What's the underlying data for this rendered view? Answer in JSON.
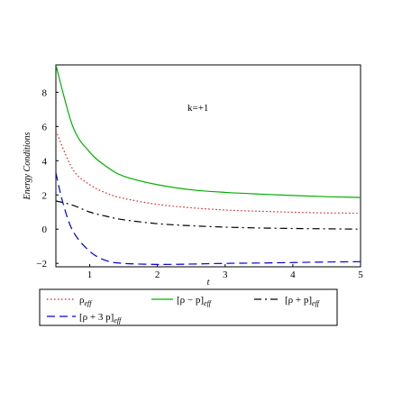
{
  "chart_data": {
    "type": "line",
    "xlabel": "t",
    "ylabel": "Energy Conditions",
    "annotation": "k=+1",
    "xlim": [
      0.5,
      5
    ],
    "ylim": [
      -2.2,
      9.6
    ],
    "xticks": [
      1,
      2,
      3,
      4,
      5
    ],
    "yticks": [
      -2,
      0,
      2,
      4,
      6,
      8
    ],
    "grid": false,
    "legend_position": "bottom",
    "series": [
      {
        "name": "ρ_eff",
        "label_main": "ρ",
        "label_sub": "eff",
        "color": "#e41a1c",
        "dash": "dotted",
        "x": [
          0.5,
          0.75,
          1.0,
          1.25,
          1.5,
          2.0,
          2.5,
          3.0,
          3.5,
          4.0,
          4.5,
          5.0
        ],
        "y": [
          5.75,
          3.5,
          2.6,
          2.1,
          1.8,
          1.45,
          1.25,
          1.12,
          1.05,
          0.99,
          0.95,
          0.93
        ]
      },
      {
        "name": "[ρ − p]_eff",
        "label_main": "[ρ − p]",
        "label_sub": "eff",
        "color": "#00b000",
        "dash": "solid",
        "x": [
          0.5,
          0.75,
          1.0,
          1.25,
          1.5,
          2.0,
          2.5,
          3.0,
          3.5,
          4.0,
          4.5,
          5.0
        ],
        "y": [
          9.6,
          6.0,
          4.5,
          3.65,
          3.1,
          2.6,
          2.3,
          2.15,
          2.05,
          1.97,
          1.9,
          1.85
        ]
      },
      {
        "name": "[ρ + p]_eff",
        "label_main": "[ρ + p]",
        "label_sub": "eff",
        "color": "#000000",
        "dash": "dashdot",
        "x": [
          0.5,
          0.75,
          1.0,
          1.25,
          1.5,
          2.0,
          2.5,
          3.0,
          3.5,
          4.0,
          4.5,
          5.0
        ],
        "y": [
          1.65,
          1.4,
          1.0,
          0.75,
          0.55,
          0.32,
          0.2,
          0.12,
          0.07,
          0.04,
          0.02,
          0.0
        ]
      },
      {
        "name": "[ρ + 3p]_eff",
        "label_main": "[ρ + 3 p]",
        "label_sub": "eff",
        "color": "#0000e0",
        "dash": "dashed",
        "x": [
          0.5,
          0.6,
          0.75,
          1.0,
          1.25,
          1.5,
          2.0,
          2.5,
          3.0,
          3.5,
          4.0,
          4.5,
          5.0
        ],
        "y": [
          3.3,
          1.6,
          -0.1,
          -1.3,
          -1.85,
          -2.0,
          -2.06,
          -2.04,
          -2.0,
          -1.98,
          -1.95,
          -1.92,
          -1.9
        ]
      }
    ]
  }
}
